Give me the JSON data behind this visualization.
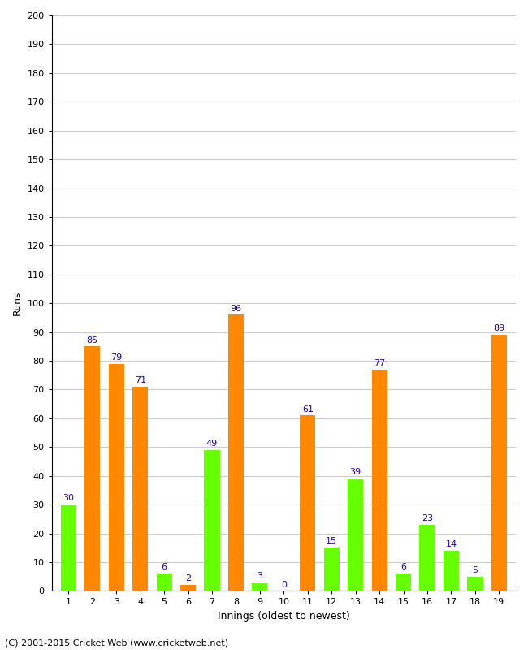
{
  "xlabel": "Innings (oldest to newest)",
  "ylabel": "Runs",
  "footnote": "(C) 2001-2015 Cricket Web (www.cricketweb.net)",
  "ylim": [
    0,
    200
  ],
  "yticks": [
    0,
    10,
    20,
    30,
    40,
    50,
    60,
    70,
    80,
    90,
    100,
    110,
    120,
    130,
    140,
    150,
    160,
    170,
    180,
    190,
    200
  ],
  "innings_labels": [
    "1",
    "2",
    "3",
    "4",
    "5",
    "6",
    "7",
    "8",
    "9",
    "10",
    "11",
    "12",
    "13",
    "14",
    "15",
    "16",
    "17",
    "18",
    "19"
  ],
  "values": [
    30,
    85,
    79,
    71,
    6,
    2,
    49,
    96,
    3,
    0,
    61,
    15,
    39,
    77,
    6,
    23,
    14,
    5,
    89
  ],
  "colors": [
    "#66ff00",
    "#ff8800",
    "#ff8800",
    "#ff8800",
    "#66ff00",
    "#ff8800",
    "#66ff00",
    "#ff8800",
    "#66ff00",
    "#ff8800",
    "#ff8800",
    "#66ff00",
    "#66ff00",
    "#ff8800",
    "#66ff00",
    "#66ff00",
    "#66ff00",
    "#66ff00",
    "#ff8800"
  ],
  "label_color": "#2200aa",
  "bar_width": 0.65,
  "background_color": "#ffffff",
  "grid_color": "#cccccc",
  "axis_label_fontsize": 9,
  "tick_fontsize": 8,
  "value_label_fontsize": 8,
  "footnote_fontsize": 8
}
